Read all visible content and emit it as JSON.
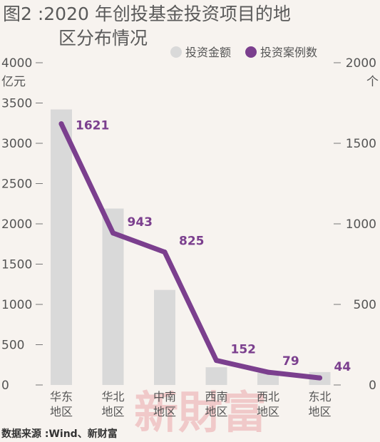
{
  "title_line1": "图2 :2020 年创投基金投资项目的地",
  "title_line2": "区分布情况",
  "source": "数据来源 :Wind、新财富",
  "watermark": "新財富",
  "colors": {
    "bar": "#d9d9d9",
    "line": "#7b3f8e",
    "text": "#555555"
  },
  "chart_data": {
    "type": "bar+line",
    "categories": [
      "华东\n地区",
      "华北\n地区",
      "中南\n地区",
      "西南\n地区",
      "西北\n地区",
      "东北\n地区"
    ],
    "series": [
      {
        "name": "投资金额",
        "type": "bar",
        "axis": "left",
        "unit": "亿元",
        "values": [
          3420,
          2190,
          1180,
          220,
          150,
          160
        ]
      },
      {
        "name": "投资案例数",
        "type": "line",
        "axis": "right",
        "unit": "个",
        "values": [
          1621,
          943,
          825,
          152,
          79,
          44
        ]
      }
    ],
    "left_axis": {
      "unit": "亿元",
      "ticks": [
        0,
        500,
        1000,
        1500,
        2000,
        2500,
        3000,
        3500,
        4000
      ],
      "ylim": [
        0,
        4000
      ]
    },
    "right_axis": {
      "unit": "个",
      "ticks": [
        0,
        500,
        1000,
        1500,
        2000
      ],
      "ylim": [
        0,
        2000
      ]
    },
    "data_labels": [
      "1621",
      "943",
      "825",
      "152",
      "79",
      "44"
    ],
    "legend": {
      "position": "top-right",
      "items": [
        "投资金额",
        "投资案例数"
      ]
    },
    "grid": false
  }
}
